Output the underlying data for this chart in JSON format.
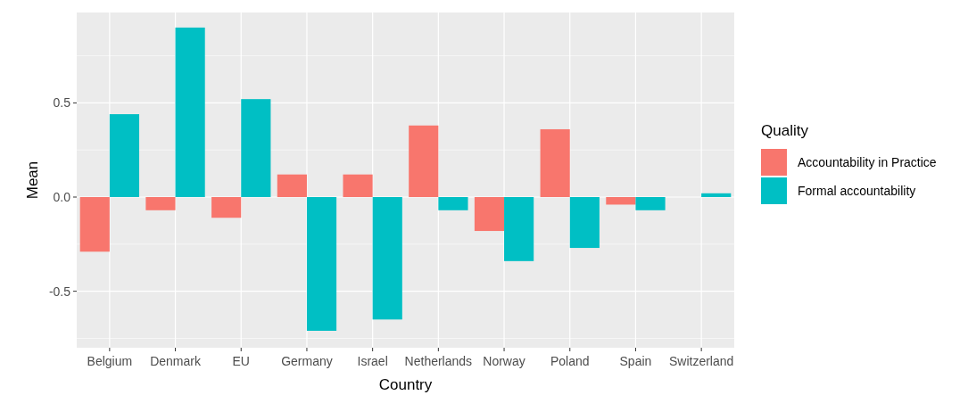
{
  "chart_data": {
    "type": "bar",
    "xlabel": "Country",
    "ylabel": "Mean",
    "legend_title": "Quality",
    "legend": "right",
    "grid": true,
    "categories": [
      "Belgium",
      "Denmark",
      "EU",
      "Germany",
      "Israel",
      "Netherlands",
      "Norway",
      "Poland",
      "Spain",
      "Switzerland"
    ],
    "series": [
      {
        "name": "Accountability in Practice",
        "color": "#f8766d",
        "values": [
          -0.29,
          -0.07,
          -0.11,
          0.12,
          0.12,
          0.38,
          -0.18,
          0.36,
          -0.04,
          null
        ]
      },
      {
        "name": "Formal accountability",
        "color": "#00bfc4",
        "values": [
          0.44,
          0.9,
          0.52,
          -0.71,
          -0.65,
          -0.07,
          -0.34,
          -0.27,
          -0.07,
          0.02
        ]
      }
    ],
    "ylim": [
      -0.8,
      0.98
    ],
    "yticks": [
      {
        "value": -0.5,
        "label": "-0.5"
      },
      {
        "value": 0,
        "label": "0.0"
      },
      {
        "value": 0.5,
        "label": "0.5"
      }
    ]
  }
}
